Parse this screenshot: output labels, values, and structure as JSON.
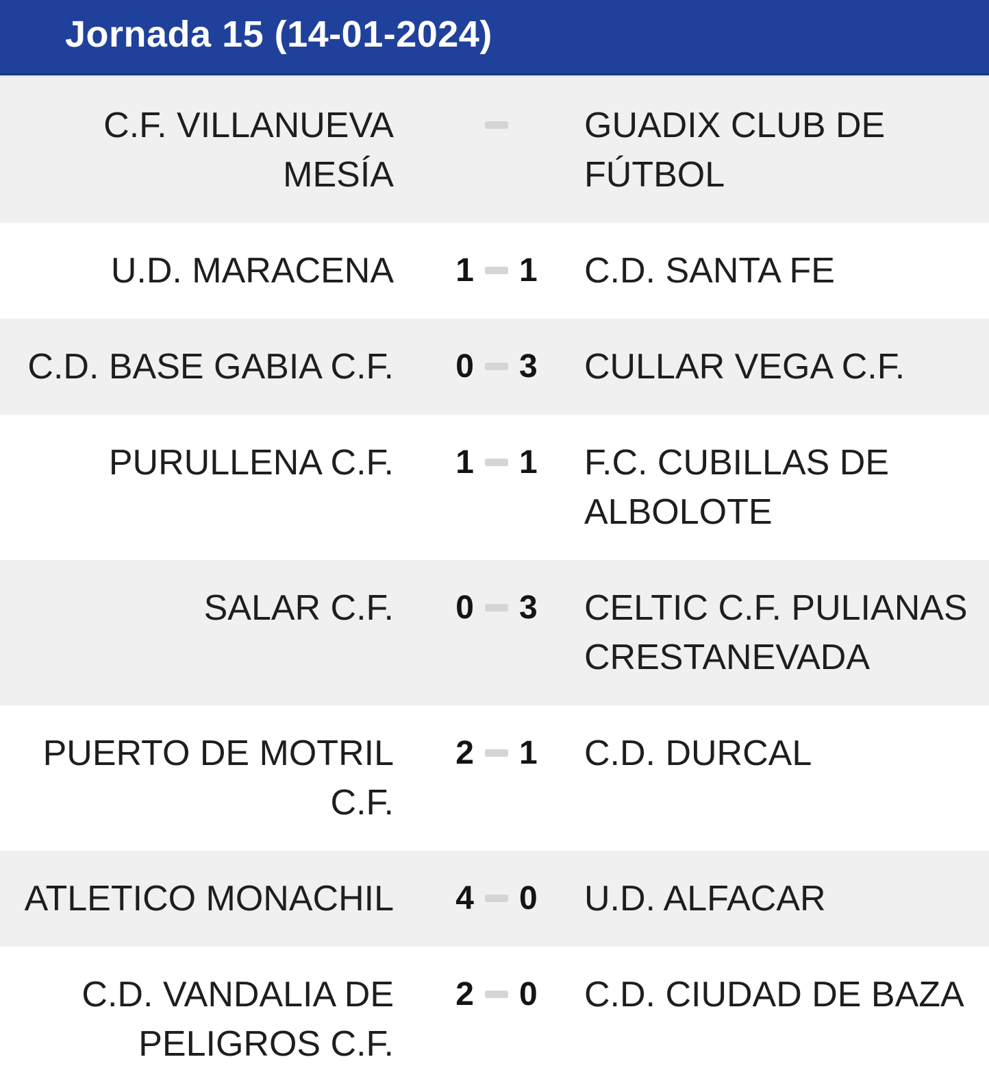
{
  "header": {
    "title": "Jornada 15 (14-01-2024)"
  },
  "colors": {
    "header_bg": "#20419b",
    "header_border": "#1a337e",
    "header_text": "#ffffff",
    "row_bg": "#ffffff",
    "row_alt_bg": "#f0f0f1",
    "team_text": "#1e1e1e",
    "score_text": "#141414",
    "score_dash": "#d5d5d5"
  },
  "matches": [
    {
      "home": "C.F. VILLANUEVA MESÍA",
      "home_score": "",
      "away_score": "",
      "away": "GUADIX CLUB DE FÚTBOL"
    },
    {
      "home": "U.D. MARACENA",
      "home_score": "1",
      "away_score": "1",
      "away": "C.D. SANTA FE"
    },
    {
      "home": "C.D. BASE GABIA C.F.",
      "home_score": "0",
      "away_score": "3",
      "away": "CULLAR VEGA C.F."
    },
    {
      "home": "PURULLENA C.F.",
      "home_score": "1",
      "away_score": "1",
      "away": "F.C. CUBILLAS DE ALBOLOTE"
    },
    {
      "home": "SALAR C.F.",
      "home_score": "0",
      "away_score": "3",
      "away": "CELTIC C.F. PULIANAS CRESTANEVADA"
    },
    {
      "home": "PUERTO DE MOTRIL C.F.",
      "home_score": "2",
      "away_score": "1",
      "away": "C.D. DURCAL"
    },
    {
      "home": "ATLETICO MONACHIL",
      "home_score": "4",
      "away_score": "0",
      "away": "U.D. ALFACAR"
    },
    {
      "home": "C.D. VANDALIA DE PELIGROS C.F.",
      "home_score": "2",
      "away_score": "0",
      "away": "C.D. CIUDAD DE BAZA"
    }
  ]
}
